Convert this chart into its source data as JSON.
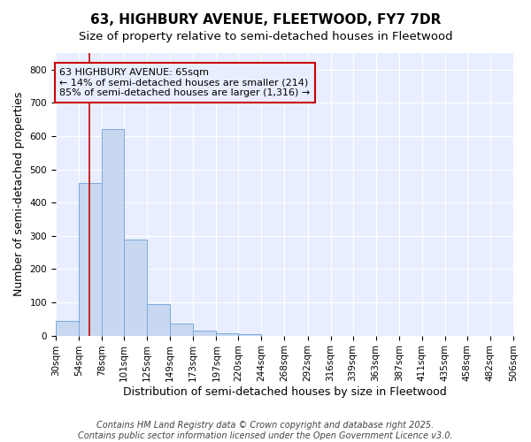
{
  "title": "63, HIGHBURY AVENUE, FLEETWOOD, FY7 7DR",
  "subtitle": "Size of property relative to semi-detached houses in Fleetwood",
  "xlabel": "Distribution of semi-detached houses by size in Fleetwood",
  "ylabel": "Number of semi-detached properties",
  "footnote1": "Contains HM Land Registry data © Crown copyright and database right 2025.",
  "footnote2": "Contains public sector information licensed under the Open Government Licence v3.0.",
  "bin_edges": [
    30,
    54,
    78,
    101,
    125,
    149,
    173,
    197,
    220,
    244,
    268,
    292,
    316,
    339,
    363,
    387,
    411,
    435,
    458,
    482,
    506
  ],
  "bar_heights": [
    45,
    460,
    620,
    290,
    95,
    35,
    15,
    8,
    5,
    0,
    0,
    0,
    0,
    0,
    0,
    0,
    0,
    0,
    0,
    0
  ],
  "bar_color": "#c8d8f0",
  "bar_edgecolor": "#7aaadd",
  "property_size": 65,
  "red_line_color": "#cc0000",
  "annotation_title": "63 HIGHBURY AVENUE: 65sqm",
  "annotation_line1": "← 14% of semi-detached houses are smaller (214)",
  "annotation_line2": "85% of semi-detached houses are larger (1,316) →",
  "ylim": [
    0,
    850
  ],
  "yticks": [
    0,
    100,
    200,
    300,
    400,
    500,
    600,
    700,
    800
  ],
  "background_color": "#ffffff",
  "plot_bg_color": "#e8eeff",
  "grid_color": "#ffffff",
  "title_fontsize": 11,
  "subtitle_fontsize": 9.5,
  "axis_label_fontsize": 9,
  "tick_fontsize": 7.5,
  "annotation_fontsize": 8,
  "footnote_fontsize": 7
}
